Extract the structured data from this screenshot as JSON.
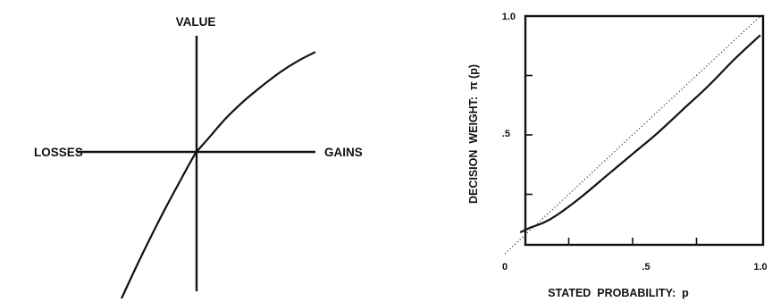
{
  "chart_data": [
    {
      "type": "line",
      "labels": {
        "top": "VALUE",
        "left": "LOSSES",
        "right": "GAINS"
      },
      "series": [
        {
          "x": [
            -1.0,
            -0.8,
            -0.6,
            -0.4,
            -0.2,
            -0.05,
            0,
            0.1,
            0.25,
            0.4,
            0.55,
            0.7,
            0.85,
            1.0
          ],
          "y": [
            -1.0,
            -0.78,
            -0.57,
            -0.37,
            -0.18,
            -0.04,
            0,
            0.12,
            0.3,
            0.45,
            0.58,
            0.7,
            0.8,
            0.88
          ]
        }
      ],
      "grid": false
    },
    {
      "type": "line",
      "xlabel": "STATED  PROBABILITY:  p",
      "ylabel": "DECISION  WEIGHT:  π (p)",
      "xlim": [
        0,
        1
      ],
      "ylim": [
        0,
        1
      ],
      "x_ticks": [
        "0",
        ".5",
        "1.0"
      ],
      "y_ticks": [
        "1.0",
        ".5"
      ],
      "series": [
        {
          "style": "solid",
          "x": [
            0.06,
            0.1,
            0.15,
            0.2,
            0.3,
            0.4,
            0.5,
            0.6,
            0.7,
            0.8,
            0.9,
            1.0
          ],
          "y": [
            0.09,
            0.11,
            0.13,
            0.16,
            0.24,
            0.33,
            0.42,
            0.51,
            0.61,
            0.71,
            0.82,
            0.92
          ]
        },
        {
          "style": "dotted",
          "x": [
            0,
            1
          ],
          "y": [
            0,
            1
          ]
        }
      ],
      "grid": false
    }
  ]
}
